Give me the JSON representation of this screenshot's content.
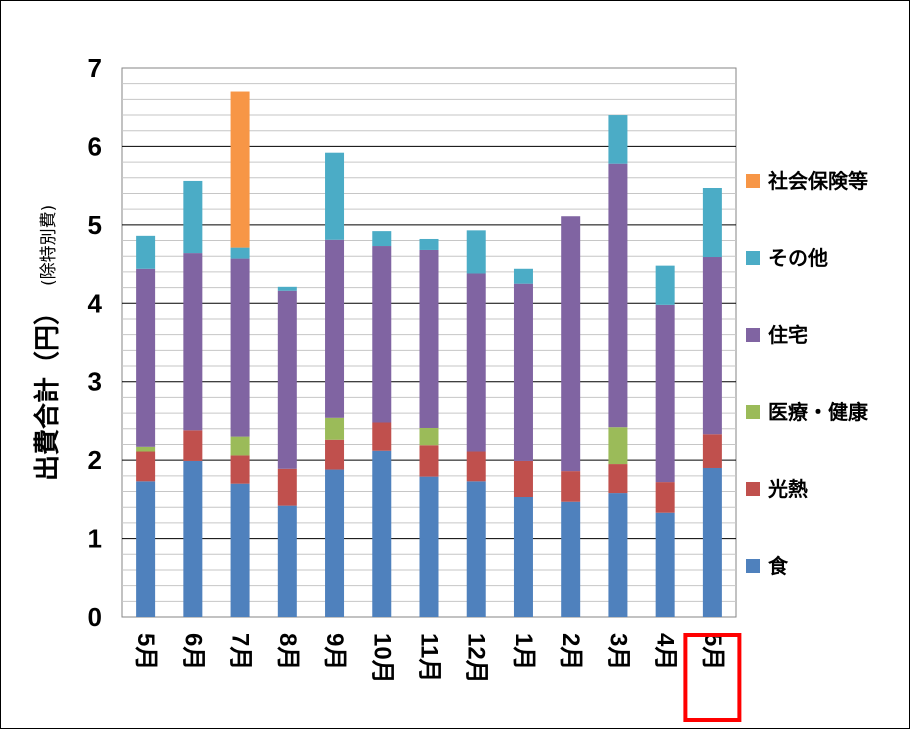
{
  "chart_data": {
    "type": "bar",
    "stacked": true,
    "ylabel": "出費合計（円）",
    "ylabel_sub": "(除特別費)",
    "ylim": [
      0,
      7
    ],
    "yticks": [
      "0",
      "1",
      "2",
      "3",
      "4",
      "5",
      "6",
      "7"
    ],
    "grid": true,
    "legend_position": "right",
    "categories": [
      "5月",
      "6月",
      "7月",
      "8月",
      "9月",
      "10月",
      "11月",
      "12月",
      "1月",
      "2月",
      "3月",
      "4月",
      "5月"
    ],
    "highlight_category_index": 12,
    "highlight_color": "#ff0000",
    "series": [
      {
        "name": "食",
        "color": "#4f81bd",
        "values": [
          1.73,
          1.99,
          1.7,
          1.42,
          1.88,
          2.12,
          1.79,
          1.73,
          1.53,
          1.47,
          1.58,
          1.33,
          1.9
        ]
      },
      {
        "name": "光熱",
        "color": "#c0504d",
        "values": [
          0.38,
          0.39,
          0.36,
          0.47,
          0.38,
          0.36,
          0.4,
          0.38,
          0.46,
          0.39,
          0.37,
          0.39,
          0.43
        ]
      },
      {
        "name": "医療・健康",
        "color": "#9bbb59",
        "values": [
          0.06,
          0.0,
          0.24,
          0.0,
          0.28,
          0.0,
          0.22,
          0.0,
          0.0,
          0.0,
          0.47,
          0.0,
          0.0
        ]
      },
      {
        "name": "住宅",
        "color": "#8064a2",
        "values": [
          2.27,
          2.26,
          2.27,
          2.27,
          2.27,
          2.25,
          2.27,
          2.27,
          2.26,
          3.25,
          3.36,
          2.26,
          2.26
        ]
      },
      {
        "name": "その他",
        "color": "#4bacc6",
        "values": [
          0.42,
          0.92,
          0.14,
          0.05,
          1.11,
          0.19,
          0.14,
          0.55,
          0.19,
          0.0,
          0.62,
          0.5,
          0.88
        ]
      },
      {
        "name": "社会保険等",
        "color": "#f79646",
        "values": [
          0.0,
          0.0,
          1.99,
          0.0,
          0.0,
          0.0,
          0.0,
          0.0,
          0.0,
          0.0,
          0.0,
          0.0,
          0.0
        ]
      }
    ]
  }
}
